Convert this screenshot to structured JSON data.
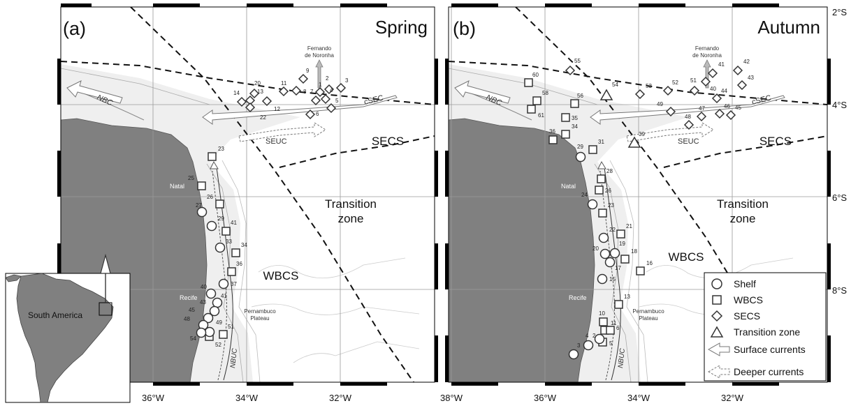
{
  "colors": {
    "land": "#808080",
    "shelf": "#efefef",
    "ocean": "#ffffff",
    "frame": "#000000",
    "marker": "#333333"
  },
  "panel_a": {
    "letter": "(a)",
    "season": "Spring",
    "region_secs": "SECS",
    "region_transition_1": "Transition",
    "region_transition_2": "zone",
    "region_wbcs": "WBCS",
    "island_1": "Fernando",
    "island_2": "de Noronha",
    "current_nbc": "NBC",
    "current_csec": "cSEC",
    "current_seuc": "SEUC",
    "current_nbuc": "NBUC",
    "place_natal": "Natal",
    "place_recife": "Recife",
    "plateau_1": "Pernambuco",
    "plateau_2": "Plateau",
    "stations": [
      {
        "id": "9",
        "type": "SECS"
      },
      {
        "id": "3",
        "type": "SECS"
      },
      {
        "id": "2",
        "type": "SECS"
      },
      {
        "id": "1",
        "type": "SECS"
      },
      {
        "id": "4",
        "type": "SECS"
      },
      {
        "id": "5",
        "type": "SECS"
      },
      {
        "id": "6",
        "type": "SECS"
      },
      {
        "id": "7",
        "type": "SECS"
      },
      {
        "id": "8",
        "type": "SECS"
      },
      {
        "id": "11",
        "type": "SECS"
      },
      {
        "id": "20",
        "type": "SECS"
      },
      {
        "id": "13",
        "type": "SECS"
      },
      {
        "id": "14",
        "type": "SECS"
      },
      {
        "id": "12",
        "type": "SECS"
      },
      {
        "id": "22",
        "type": "SECS"
      },
      {
        "id": "23",
        "type": "WBCS"
      },
      {
        "id": "25",
        "type": "WBCS"
      },
      {
        "id": "26",
        "type": "WBCS"
      },
      {
        "id": "41",
        "type": "WBCS"
      },
      {
        "id": "34",
        "type": "WBCS"
      },
      {
        "id": "36",
        "type": "WBCS"
      },
      {
        "id": "51",
        "type": "WBCS"
      },
      {
        "id": "52",
        "type": "WBCS"
      },
      {
        "id": "27",
        "type": "Shelf"
      },
      {
        "id": "29",
        "type": "Shelf"
      },
      {
        "id": "33",
        "type": "Shelf"
      },
      {
        "id": "37",
        "type": "Shelf"
      },
      {
        "id": "40",
        "type": "Shelf"
      },
      {
        "id": "41",
        "type": "Shelf"
      },
      {
        "id": "43",
        "type": "Shelf"
      },
      {
        "id": "45",
        "type": "Shelf"
      },
      {
        "id": "48",
        "type": "Shelf"
      },
      {
        "id": "49",
        "type": "Shelf"
      },
      {
        "id": "54",
        "type": "Shelf"
      }
    ]
  },
  "panel_b": {
    "letter": "(b)",
    "season": "Autumn",
    "region_secs": "SECS",
    "region_transition_1": "Transition",
    "region_transition_2": "zone",
    "region_wbcs": "WBCS",
    "island_1": "Fernando",
    "island_2": "de Noronha",
    "current_nbc": "NBC",
    "current_csec": "cSEC",
    "current_seuc": "SEUC",
    "current_nbuc": "NBUC",
    "place_natal": "Natal",
    "place_recife": "Recife",
    "plateau_1": "Pernambuco",
    "plateau_2": "Plateau",
    "stations": [
      {
        "id": "55",
        "type": "SECS"
      },
      {
        "id": "53",
        "type": "SECS"
      },
      {
        "id": "52",
        "type": "SECS"
      },
      {
        "id": "51",
        "type": "SECS"
      },
      {
        "id": "41",
        "type": "SECS"
      },
      {
        "id": "42",
        "type": "SECS"
      },
      {
        "id": "43",
        "type": "SECS"
      },
      {
        "id": "40",
        "type": "SECS"
      },
      {
        "id": "44",
        "type": "SECS"
      },
      {
        "id": "49",
        "type": "SECS"
      },
      {
        "id": "47",
        "type": "SECS"
      },
      {
        "id": "48",
        "type": "SECS"
      },
      {
        "id": "46",
        "type": "SECS"
      },
      {
        "id": "45",
        "type": "SECS"
      },
      {
        "id": "54",
        "type": "Transition zone"
      },
      {
        "id": "39",
        "type": "Transition zone"
      },
      {
        "id": "60",
        "type": "WBCS"
      },
      {
        "id": "58",
        "type": "WBCS"
      },
      {
        "id": "61",
        "type": "WBCS"
      },
      {
        "id": "56",
        "type": "WBCS"
      },
      {
        "id": "35",
        "type": "WBCS"
      },
      {
        "id": "34",
        "type": "WBCS"
      },
      {
        "id": "36",
        "type": "WBCS"
      },
      {
        "id": "31",
        "type": "WBCS"
      },
      {
        "id": "28",
        "type": "WBCS"
      },
      {
        "id": "26",
        "type": "WBCS"
      },
      {
        "id": "23",
        "type": "WBCS"
      },
      {
        "id": "21",
        "type": "WBCS"
      },
      {
        "id": "18",
        "type": "WBCS"
      },
      {
        "id": "16",
        "type": "WBCS"
      },
      {
        "id": "13",
        "type": "WBCS"
      },
      {
        "id": "10",
        "type": "WBCS"
      },
      {
        "id": "11",
        "type": "WBCS"
      },
      {
        "id": "6",
        "type": "WBCS"
      },
      {
        "id": "5",
        "type": "WBCS"
      },
      {
        "id": "29",
        "type": "Shelf"
      },
      {
        "id": "24",
        "type": "Shelf"
      },
      {
        "id": "22",
        "type": "Shelf"
      },
      {
        "id": "20",
        "type": "Shelf"
      },
      {
        "id": "19",
        "type": "Shelf"
      },
      {
        "id": "17",
        "type": "Shelf"
      },
      {
        "id": "15",
        "type": "Shelf"
      },
      {
        "id": "4",
        "type": "Shelf"
      },
      {
        "id": "2",
        "type": "Shelf"
      },
      {
        "id": "3",
        "type": "Shelf"
      }
    ]
  },
  "legend": {
    "shelf": "Shelf",
    "wbcs": "WBCS",
    "secs": "SECS",
    "transition": "Transition zone",
    "surface": "Surface currents",
    "deeper": "Deeper currents"
  },
  "axes": {
    "x_a": [
      "36°W",
      "34°W",
      "32°W"
    ],
    "x_b": [
      "38°W",
      "36°W",
      "34°W",
      "32°W"
    ],
    "y": [
      "2°S",
      "4°S",
      "6°S",
      "8°S"
    ]
  },
  "inset": {
    "label": "South America"
  }
}
